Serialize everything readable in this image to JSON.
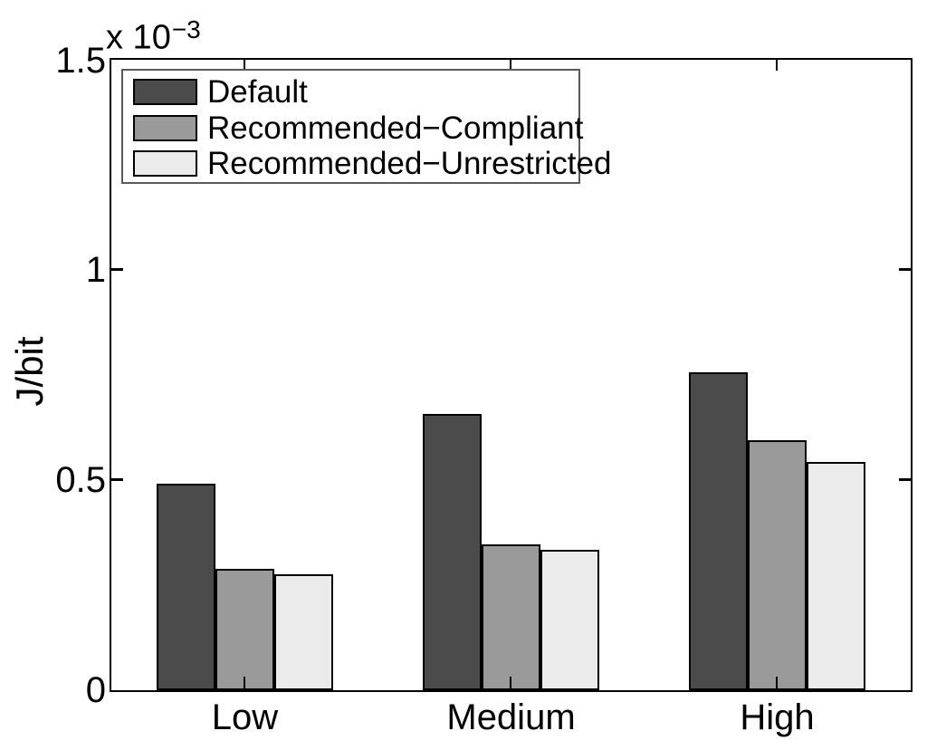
{
  "chart_data": {
    "type": "bar",
    "title": "",
    "ylabel": "J/bit",
    "y_axis_multiplier": "x 10",
    "y_axis_multiplier_exponent": "−3",
    "unit_scale_note": "values are in units of 10^-3 J/bit",
    "categories": [
      "Low",
      "Medium",
      "High"
    ],
    "series": [
      {
        "name": "Default",
        "color": "#4b4b4b",
        "values": [
          0.492,
          0.658,
          0.757
        ]
      },
      {
        "name": "Recommended−Compliant",
        "color": "#9a9a9a",
        "values": [
          0.29,
          0.348,
          0.595
        ]
      },
      {
        "name": "Recommended−Unrestricted",
        "color": "#ebebeb",
        "values": [
          0.277,
          0.335,
          0.544
        ]
      }
    ],
    "ylim": [
      0,
      1.5
    ],
    "yticks": [
      "0",
      "0.5",
      "1",
      "1.5"
    ],
    "grid": false,
    "legend_position": "top-left",
    "bar_edge_color": "#000000",
    "axis_color": "#000000",
    "background_color": "#ffffff"
  }
}
